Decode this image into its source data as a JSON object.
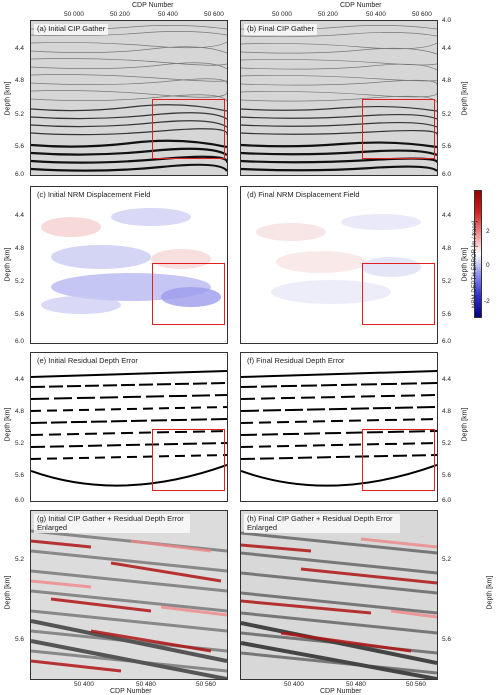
{
  "figure": {
    "top_axis_title": "CDP Number",
    "bottom_axis_title": "CDP Number",
    "top_ticks": [
      "50 000",
      "50 200",
      "50 400",
      "50 600"
    ],
    "bottom_ticks": [
      "50 400",
      "50 480",
      "50 560"
    ],
    "depth_title": "Depth [km]",
    "depth_ticks_main": [
      "4.0",
      "4.4",
      "4.8",
      "5.2",
      "5.6",
      "6.0"
    ],
    "depth_ticks_zoom": [
      "5.2",
      "5.6"
    ],
    "colorbar": {
      "label": "NRM DEPTH ERROR [m / trace]",
      "ticks": [
        "2",
        "0",
        "-2"
      ]
    },
    "panels": {
      "a": "(a) Initial CIP Gather",
      "b": "(b) Final CIP Gather",
      "c": "(c) Initial NRM Displacement Field",
      "d": "(d) Final NRM Displacement Field",
      "e": "(e) Initial Residual Depth Error",
      "f": "(f) Final Residual Depth Error",
      "g": "(g) Initial CIP Gather + Residual Depth Error Enlarged",
      "h": "(h) Final CIP Gather + Residual Depth Error Enlarged"
    }
  }
}
